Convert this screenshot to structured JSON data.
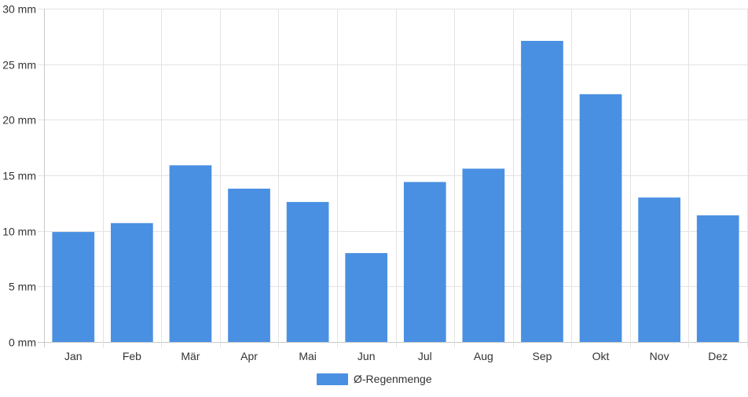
{
  "chart_data": {
    "type": "bar",
    "categories": [
      "Jan",
      "Feb",
      "Mär",
      "Apr",
      "Mai",
      "Jun",
      "Jul",
      "Aug",
      "Sep",
      "Okt",
      "Nov",
      "Dez"
    ],
    "series": [
      {
        "name": "Ø-Regenmenge",
        "values": [
          9.9,
          10.7,
          15.9,
          13.8,
          12.6,
          8.0,
          14.4,
          15.6,
          27.1,
          22.3,
          13.0,
          11.4
        ],
        "color": "#4a90e2"
      }
    ],
    "y_ticks": [
      "0 mm",
      "5 mm",
      "10 mm",
      "15 mm",
      "20 mm",
      "25 mm",
      "30 mm"
    ],
    "ylim": [
      0,
      30
    ],
    "grid": true,
    "legend_position": "bottom-center",
    "title": "",
    "xlabel": "",
    "ylabel": ""
  }
}
